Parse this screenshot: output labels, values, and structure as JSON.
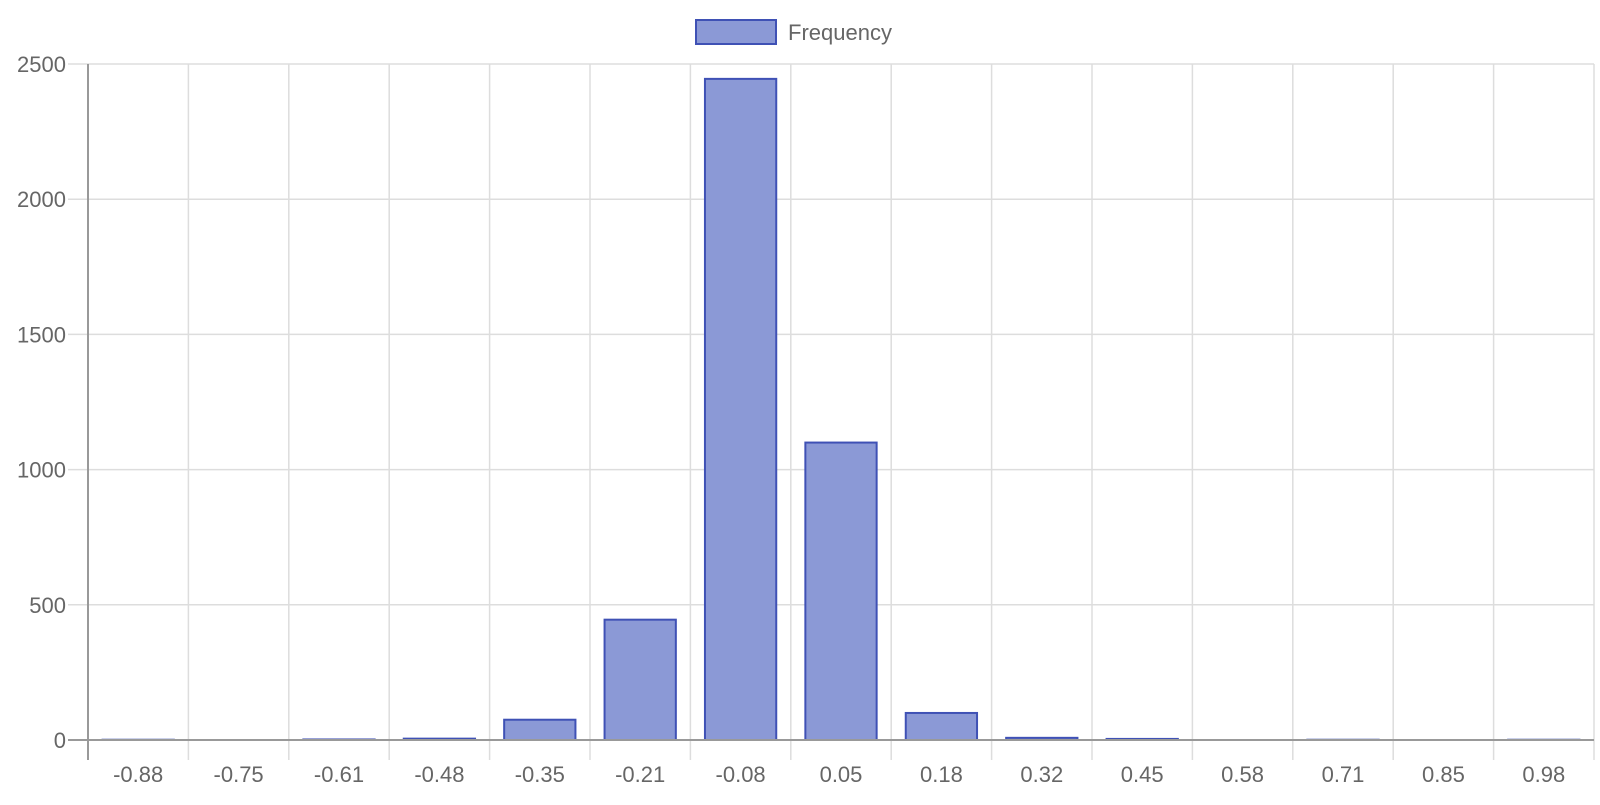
{
  "chart_data": {
    "type": "bar",
    "title": "",
    "xlabel": "",
    "ylabel": "",
    "categories": [
      "-0.88",
      "-0.75",
      "-0.61",
      "-0.48",
      "-0.35",
      "-0.21",
      "-0.08",
      "0.05",
      "0.18",
      "0.32",
      "0.45",
      "0.58",
      "0.71",
      "0.85",
      "0.98"
    ],
    "series": [
      {
        "name": "Frequency",
        "values": [
          1,
          0,
          2,
          5,
          75,
          445,
          2445,
          1100,
          100,
          8,
          4,
          0,
          1,
          0,
          1
        ]
      }
    ],
    "ylim": [
      0,
      2500
    ],
    "yticks": [
      "0",
      "500",
      "1000",
      "1500",
      "2000",
      "2500"
    ],
    "grid": true,
    "legend_position": "top-center",
    "colors": {
      "bar_fill": "#8b99d6",
      "bar_stroke": "#3f51b5",
      "grid": "#dddddd",
      "axis": "#999999",
      "text": "#666666"
    }
  }
}
